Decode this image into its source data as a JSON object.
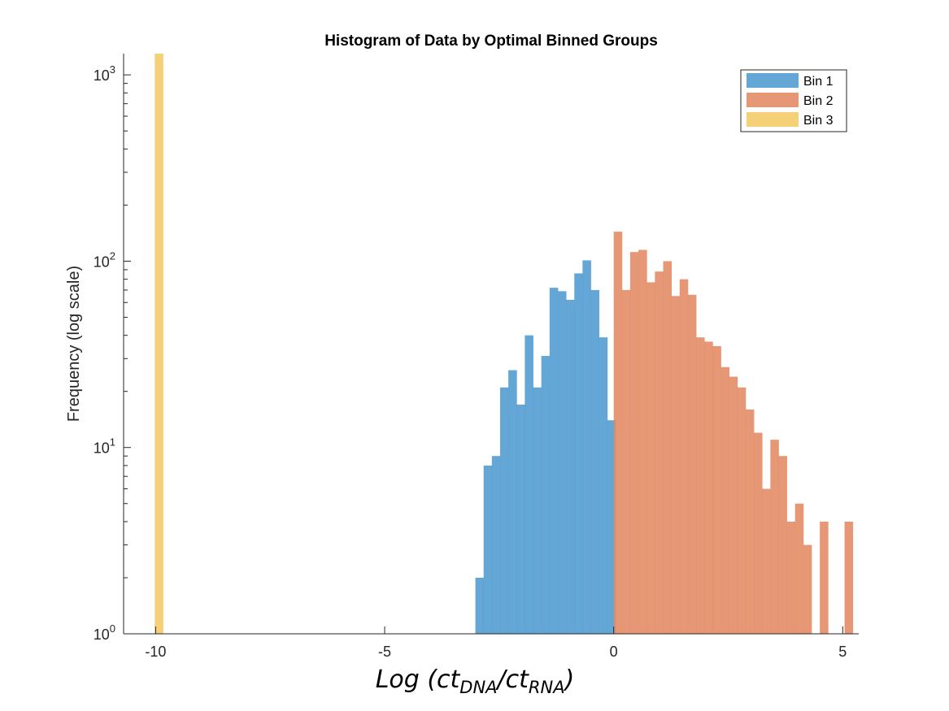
{
  "chart_data": {
    "type": "bar",
    "title": "Histogram of Data by Optimal Binned Groups",
    "ylabel": "Frequency (log scale)",
    "xlabel": {
      "prefix": "Log (ct",
      "sub1": "DNA",
      "mid": "/ct",
      "sub2": "RNA",
      "suffix": ")"
    },
    "yscale": "log",
    "xlim": [
      -10.7,
      5.35
    ],
    "ylim": [
      1,
      1300
    ],
    "xticks": [
      {
        "value": -10,
        "label": "-10"
      },
      {
        "value": -5,
        "label": "-5"
      },
      {
        "value": 0,
        "label": "0"
      },
      {
        "value": 5,
        "label": "5"
      }
    ],
    "yticks": [
      {
        "value": 1,
        "base": "10",
        "exp": "0"
      },
      {
        "value": 10,
        "base": "10",
        "exp": "1"
      },
      {
        "value": 100,
        "base": "10",
        "exp": "2"
      },
      {
        "value": 1000,
        "base": "10",
        "exp": "3"
      }
    ],
    "legend_position": "top-right",
    "series": [
      {
        "name": "Bin 1",
        "color": "#4f9bd0",
        "bin_width": 0.18,
        "x_start": -3.02,
        "values": [
          2,
          8,
          9,
          21,
          26,
          17,
          40,
          21,
          31,
          72,
          69,
          62,
          86,
          101,
          70,
          39,
          14
        ]
      },
      {
        "name": "Bin 2",
        "color": "#e38a63",
        "bin_width": 0.18,
        "x_start": 0.0,
        "values": [
          144,
          70,
          112,
          115,
          77,
          88,
          100,
          65,
          80,
          66,
          39,
          37,
          35,
          27,
          24,
          21,
          16,
          12,
          6,
          11,
          9,
          4,
          5,
          3,
          1,
          4,
          1,
          1,
          4
        ]
      },
      {
        "name": "Bin 3",
        "color": "#f4ca63",
        "bin_width": 0.18,
        "x_start": -10.02,
        "values": [
          1300
        ]
      }
    ]
  }
}
